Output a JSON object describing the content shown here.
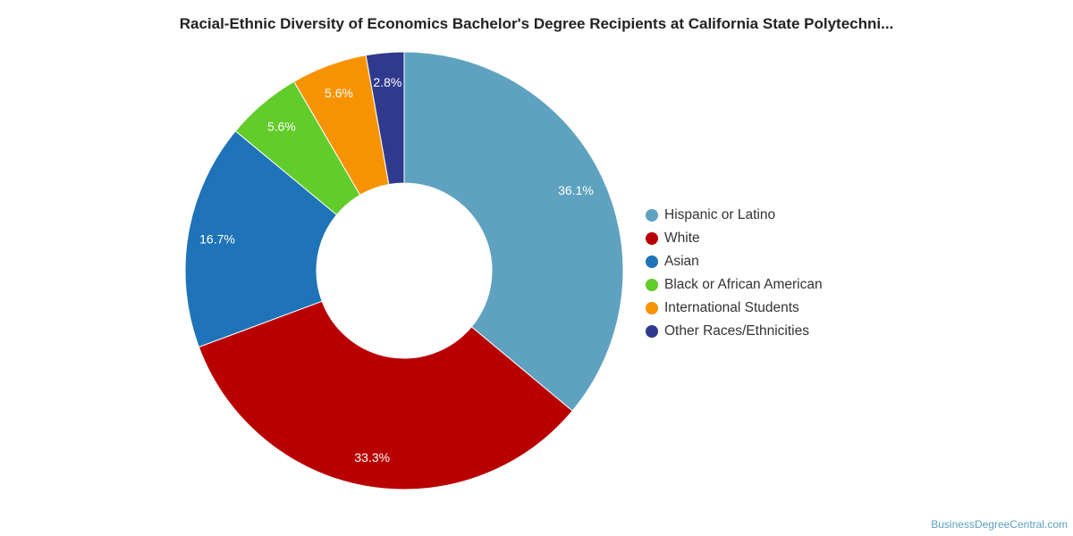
{
  "chart_data": {
    "type": "pie",
    "title": "Racial-Ethnic Diversity of Economics Bachelor's Degree Recipients at California State Polytechni...",
    "donut": true,
    "legend_position": "right",
    "slices": [
      {
        "label": "Hispanic or Latino",
        "value": 36.1,
        "display": "36.1%",
        "color": "#5fa2c0"
      },
      {
        "label": "White",
        "value": 33.3,
        "display": "33.3%",
        "color": "#b80000"
      },
      {
        "label": "Asian",
        "value": 16.7,
        "display": "16.7%",
        "color": "#1f73b8"
      },
      {
        "label": "Black or African American",
        "value": 5.6,
        "display": "5.6%",
        "color": "#62cc2a"
      },
      {
        "label": "International Students",
        "value": 5.6,
        "display": "5.6%",
        "color": "#f79302"
      },
      {
        "label": "Other Races/Ethnicities",
        "value": 2.8,
        "display": "2.8%",
        "color": "#2f3a8f"
      }
    ]
  },
  "footer": {
    "source": "BusinessDegreeCentral.com"
  }
}
